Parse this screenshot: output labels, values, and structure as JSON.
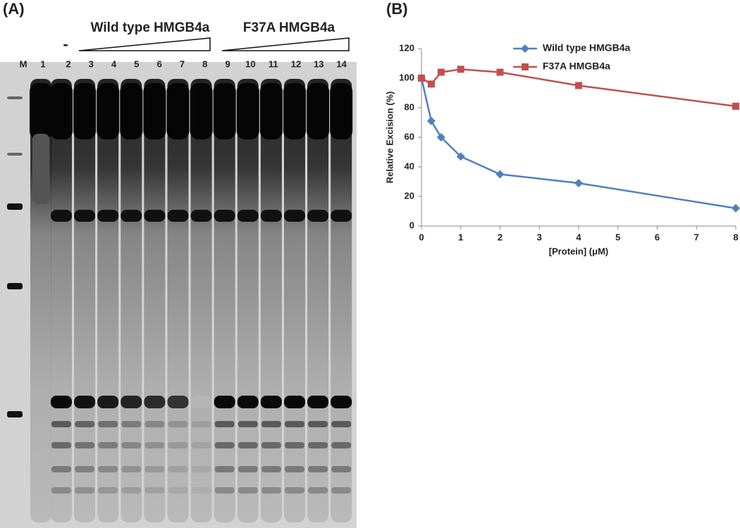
{
  "panel_a": {
    "label": "(A)",
    "groups": [
      {
        "label": "Wild type HMGB4a"
      },
      {
        "label": "F37A HMGB4a"
      }
    ],
    "control": "-",
    "lanes": [
      "M",
      "1",
      "2",
      "3",
      "4",
      "5",
      "6",
      "7",
      "8",
      "9",
      "10",
      "11",
      "12",
      "13",
      "14"
    ]
  },
  "chart_data": {
    "type": "line",
    "panel_label": "(B)",
    "x_label": "[Protein] (μM)",
    "y_label": "Relative Excision (%)",
    "x": [
      0,
      0.25,
      0.5,
      1,
      2,
      4,
      8
    ],
    "series": [
      {
        "name": "Wild type HMGB4a",
        "color": "#4f81bd",
        "marker": "diamond",
        "values": [
          100,
          71,
          60,
          47,
          35,
          29,
          12
        ]
      },
      {
        "name": "F37A HMGB4a",
        "color": "#c0504d",
        "marker": "square",
        "values": [
          100,
          96,
          104,
          106,
          104,
          95,
          81
        ]
      }
    ],
    "xlim": [
      0,
      8
    ],
    "xticks": [
      0,
      1,
      2,
      3,
      4,
      5,
      6,
      7,
      8
    ],
    "ylim": [
      0,
      120
    ],
    "yticks": [
      0,
      20,
      40,
      60,
      80,
      100,
      120
    ],
    "grid": false
  }
}
